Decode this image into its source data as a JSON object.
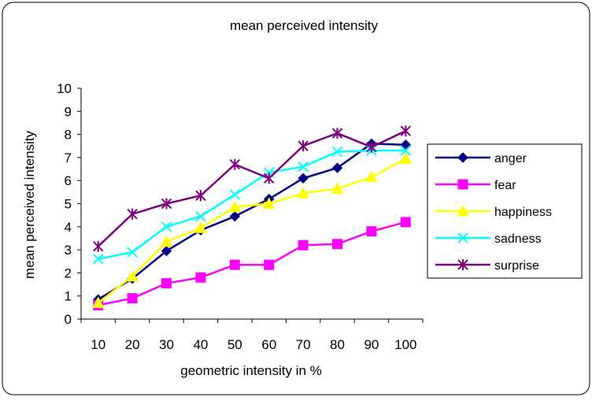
{
  "chart_data": {
    "type": "line",
    "title": "mean perceived intensity",
    "xlabel": "geometric intensity in %",
    "ylabel": "mean perceived intensity",
    "categories": [
      "10",
      "20",
      "30",
      "40",
      "50",
      "60",
      "70",
      "80",
      "90",
      "100"
    ],
    "ylim": [
      0,
      10
    ],
    "yticks": [
      "0",
      "1",
      "2",
      "3",
      "4",
      "5",
      "6",
      "7",
      "8",
      "9",
      "10"
    ],
    "grid": false,
    "legend_position": "right",
    "series": [
      {
        "name": "anger",
        "color": "#000080",
        "marker": "diamond",
        "values": [
          0.85,
          1.75,
          2.95,
          3.85,
          4.45,
          5.2,
          6.1,
          6.55,
          7.6,
          7.55
        ]
      },
      {
        "name": "fear",
        "color": "#ff00ff",
        "marker": "square",
        "values": [
          0.6,
          0.9,
          1.55,
          1.8,
          2.35,
          2.35,
          3.2,
          3.25,
          3.8,
          4.2
        ]
      },
      {
        "name": "happiness",
        "color": "#ffff00",
        "marker": "triangle",
        "values": [
          0.7,
          1.85,
          3.35,
          3.95,
          4.85,
          5.0,
          5.45,
          5.65,
          6.15,
          6.95
        ]
      },
      {
        "name": "sadness",
        "color": "#00ffff",
        "marker": "x",
        "values": [
          2.6,
          2.9,
          4.0,
          4.45,
          5.4,
          6.35,
          6.6,
          7.25,
          7.3,
          7.3
        ]
      },
      {
        "name": "surprise",
        "color": "#800080",
        "marker": "star",
        "values": [
          3.15,
          4.55,
          5.0,
          5.35,
          6.7,
          6.1,
          7.5,
          8.05,
          7.45,
          8.15
        ]
      }
    ]
  }
}
